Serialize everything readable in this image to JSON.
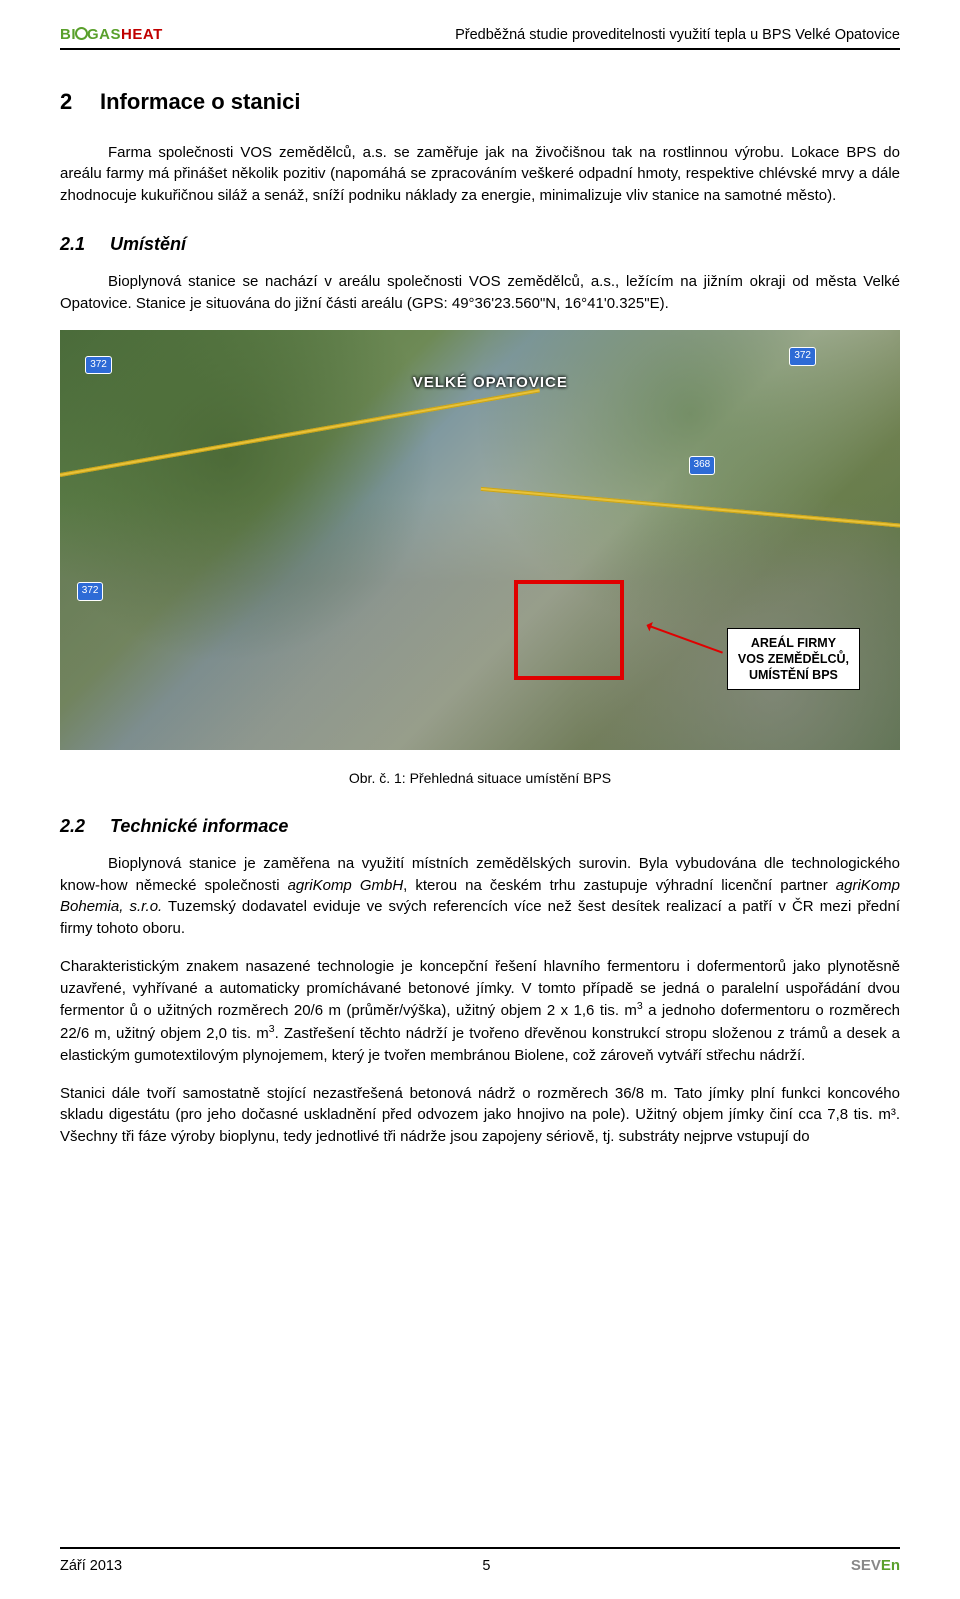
{
  "header": {
    "logo_bi": "BI",
    "logo_gas": "GAS",
    "logo_heat": "HEAT",
    "doc_title": "Předběžná studie proveditelnosti využití tepla u BPS Velké Opatovice"
  },
  "section2": {
    "num": "2",
    "title": "Informace o stanici",
    "p1": "Farma společnosti VOS zemědělců, a.s. se zaměřuje jak na živočišnou tak na rostlinnou výrobu. Lokace BPS do areálu farmy má přinášet několik pozitiv (napomáhá se zpracováním veškeré odpadní hmoty, respektive chlévské mrvy a dále zhodnocuje kukuřičnou siláž a senáž, sníží podniku náklady za energie, minimalizuje vliv stanice na samotné město)."
  },
  "section21": {
    "num": "2.1",
    "title": "Umístění",
    "p1": "Bioplynová stanice se nachází v areálu společnosti VOS zemědělců, a.s., ležícím na jižním okraji od města Velké Opatovice. Stanice je situována do jižní části areálu (GPS: 49°36'23.560\"N, 16°41'0.325\"E)."
  },
  "map": {
    "town_label": "VELKÉ OPATOVICE",
    "shield_labels": [
      "372",
      "372",
      "372",
      "368"
    ],
    "callout_l1": "AREÁL FIRMY",
    "callout_l2": "VOS ZEMĚDĚLCŮ,",
    "callout_l3": "UMÍSTĚNÍ BPS",
    "caption": "Obr. č. 1: Přehledná situace umístění BPS",
    "redbox_color": "#e00000",
    "road_color": "#e8c23a"
  },
  "section22": {
    "num": "2.2",
    "title": "Technické informace",
    "p1_a": "Bioplynová stanice je zaměřena na využití místních zemědělských surovin.  Byla vybudována dle technologického know-how německé společnosti ",
    "p1_em1": "agriKomp GmbH",
    "p1_b": ", kterou na českém trhu zastupuje výhradní licenční partner ",
    "p1_em2": "agriKomp Bohemia, s.r.o.",
    "p1_c": " Tuzemský dodavatel eviduje ve svých referencích více než šest desítek realizací a patří v ČR mezi přední firmy tohoto oboru.",
    "p2_a": "Charakteristickým znakem nasazené technologie je koncepční řešení hlavního fermentoru i dofermentorů jako plynotěsně uzavřené, vyhřívané a automaticky promíchávané betonové jímky. V tomto případě se jedná o paralelní uspořádání dvou fermentor ů o užitných rozměrech 20/6 m (průměr/výška), užitný objem 2 x 1,6 tis. m",
    "p2_sup1": "3",
    "p2_b": " a jednoho dofermentoru o rozměrech 22/6 m, užitný objem 2,0 tis. m",
    "p2_sup2": "3",
    "p2_c": ". Zastřešení těchto nádrží je tvořeno dřevěnou konstrukcí stropu složenou z trámů a desek a elastickým gumotextilovým plynojemem, který je tvořen membránou Biolene, což zároveň vytváří střechu nádrží.",
    "p3": "Stanici dále tvoří samostatně stojící nezastřešená betonová nádrž o rozměrech 36/8 m. Tato jímky plní funkci koncového skladu digestátu (pro jeho dočasné uskladnění před odvozem jako hnojivo na pole). Užitný objem jímky činí cca 7,8 tis. m³. Všechny tři fáze výroby bioplynu, tedy jednotlivé tři nádrže jsou zapojeny sériově, tj. substráty nejprve vstupují do"
  },
  "footer": {
    "date": "Září 2013",
    "page": "5",
    "logo_sev": "SEV",
    "logo_en": "En"
  },
  "colors": {
    "green": "#5aa02c",
    "red": "#c00000",
    "rule": "#000000"
  }
}
